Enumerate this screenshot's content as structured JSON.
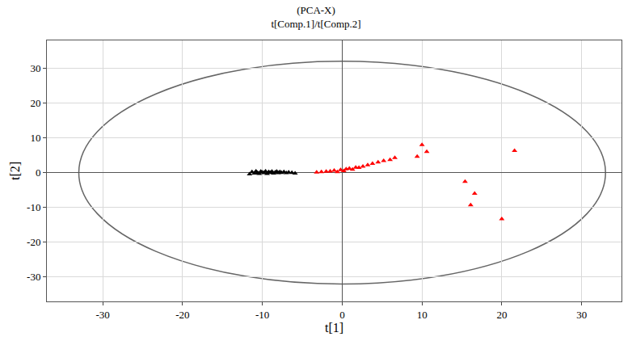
{
  "chart_data": {
    "type": "scatter",
    "title": "(PCA-X)",
    "subtitle": "t[Comp.1]/t[Comp.2]",
    "x_label": "t[1]",
    "y_label": "t[2]",
    "xlim": [
      -37,
      35
    ],
    "ylim": [
      -37,
      38
    ],
    "xticks": [
      -30,
      -20,
      -10,
      0,
      10,
      20,
      30
    ],
    "yticks": [
      -30,
      -20,
      -10,
      0,
      10,
      20,
      30
    ],
    "grid": true,
    "ellipse": {
      "x_radius": 33,
      "y_radius": 32
    },
    "series": [
      {
        "color": "#000000",
        "marker": "triangle",
        "x": [
          -11.6,
          -11.3,
          -11.0,
          -10.8,
          -10.6,
          -10.4,
          -10.2,
          -10.0,
          -9.8,
          -9.6,
          -9.4,
          -9.2,
          -9.0,
          -8.8,
          -8.6,
          -8.4,
          -8.2,
          -8.0,
          -7.8,
          -7.6,
          -7.3,
          -7.0,
          -6.7,
          -6.3,
          -5.9
        ],
        "y": [
          -0.4,
          0.2,
          -0.2,
          0.4,
          0.0,
          -0.3,
          0.3,
          0.1,
          -0.1,
          0.4,
          -0.3,
          0.2,
          0.0,
          0.3,
          -0.2,
          0.1,
          0.3,
          -0.1,
          0.2,
          0.0,
          0.2,
          -0.1,
          0.1,
          0.0,
          -0.2
        ]
      },
      {
        "color": "#ff0000",
        "marker": "triangle",
        "x": [
          -3.2,
          -2.6,
          -2.0,
          -1.5,
          -1.0,
          -0.6,
          -0.2,
          0.2,
          0.5,
          0.9,
          1.3,
          1.7,
          2.1,
          2.6,
          3.2,
          3.8,
          4.5,
          5.2,
          6.0,
          6.6,
          9.4,
          10.0,
          10.6,
          15.4,
          16.1,
          16.6,
          20.0,
          21.6
        ],
        "y": [
          0.1,
          0.2,
          0.3,
          0.4,
          0.6,
          0.2,
          0.8,
          0.5,
          1.0,
          1.2,
          0.9,
          1.5,
          1.4,
          1.8,
          2.2,
          2.6,
          3.0,
          3.4,
          3.7,
          4.3,
          4.6,
          8.0,
          6.0,
          -2.6,
          -9.3,
          -6.0,
          -13.3,
          6.3
        ]
      }
    ]
  }
}
